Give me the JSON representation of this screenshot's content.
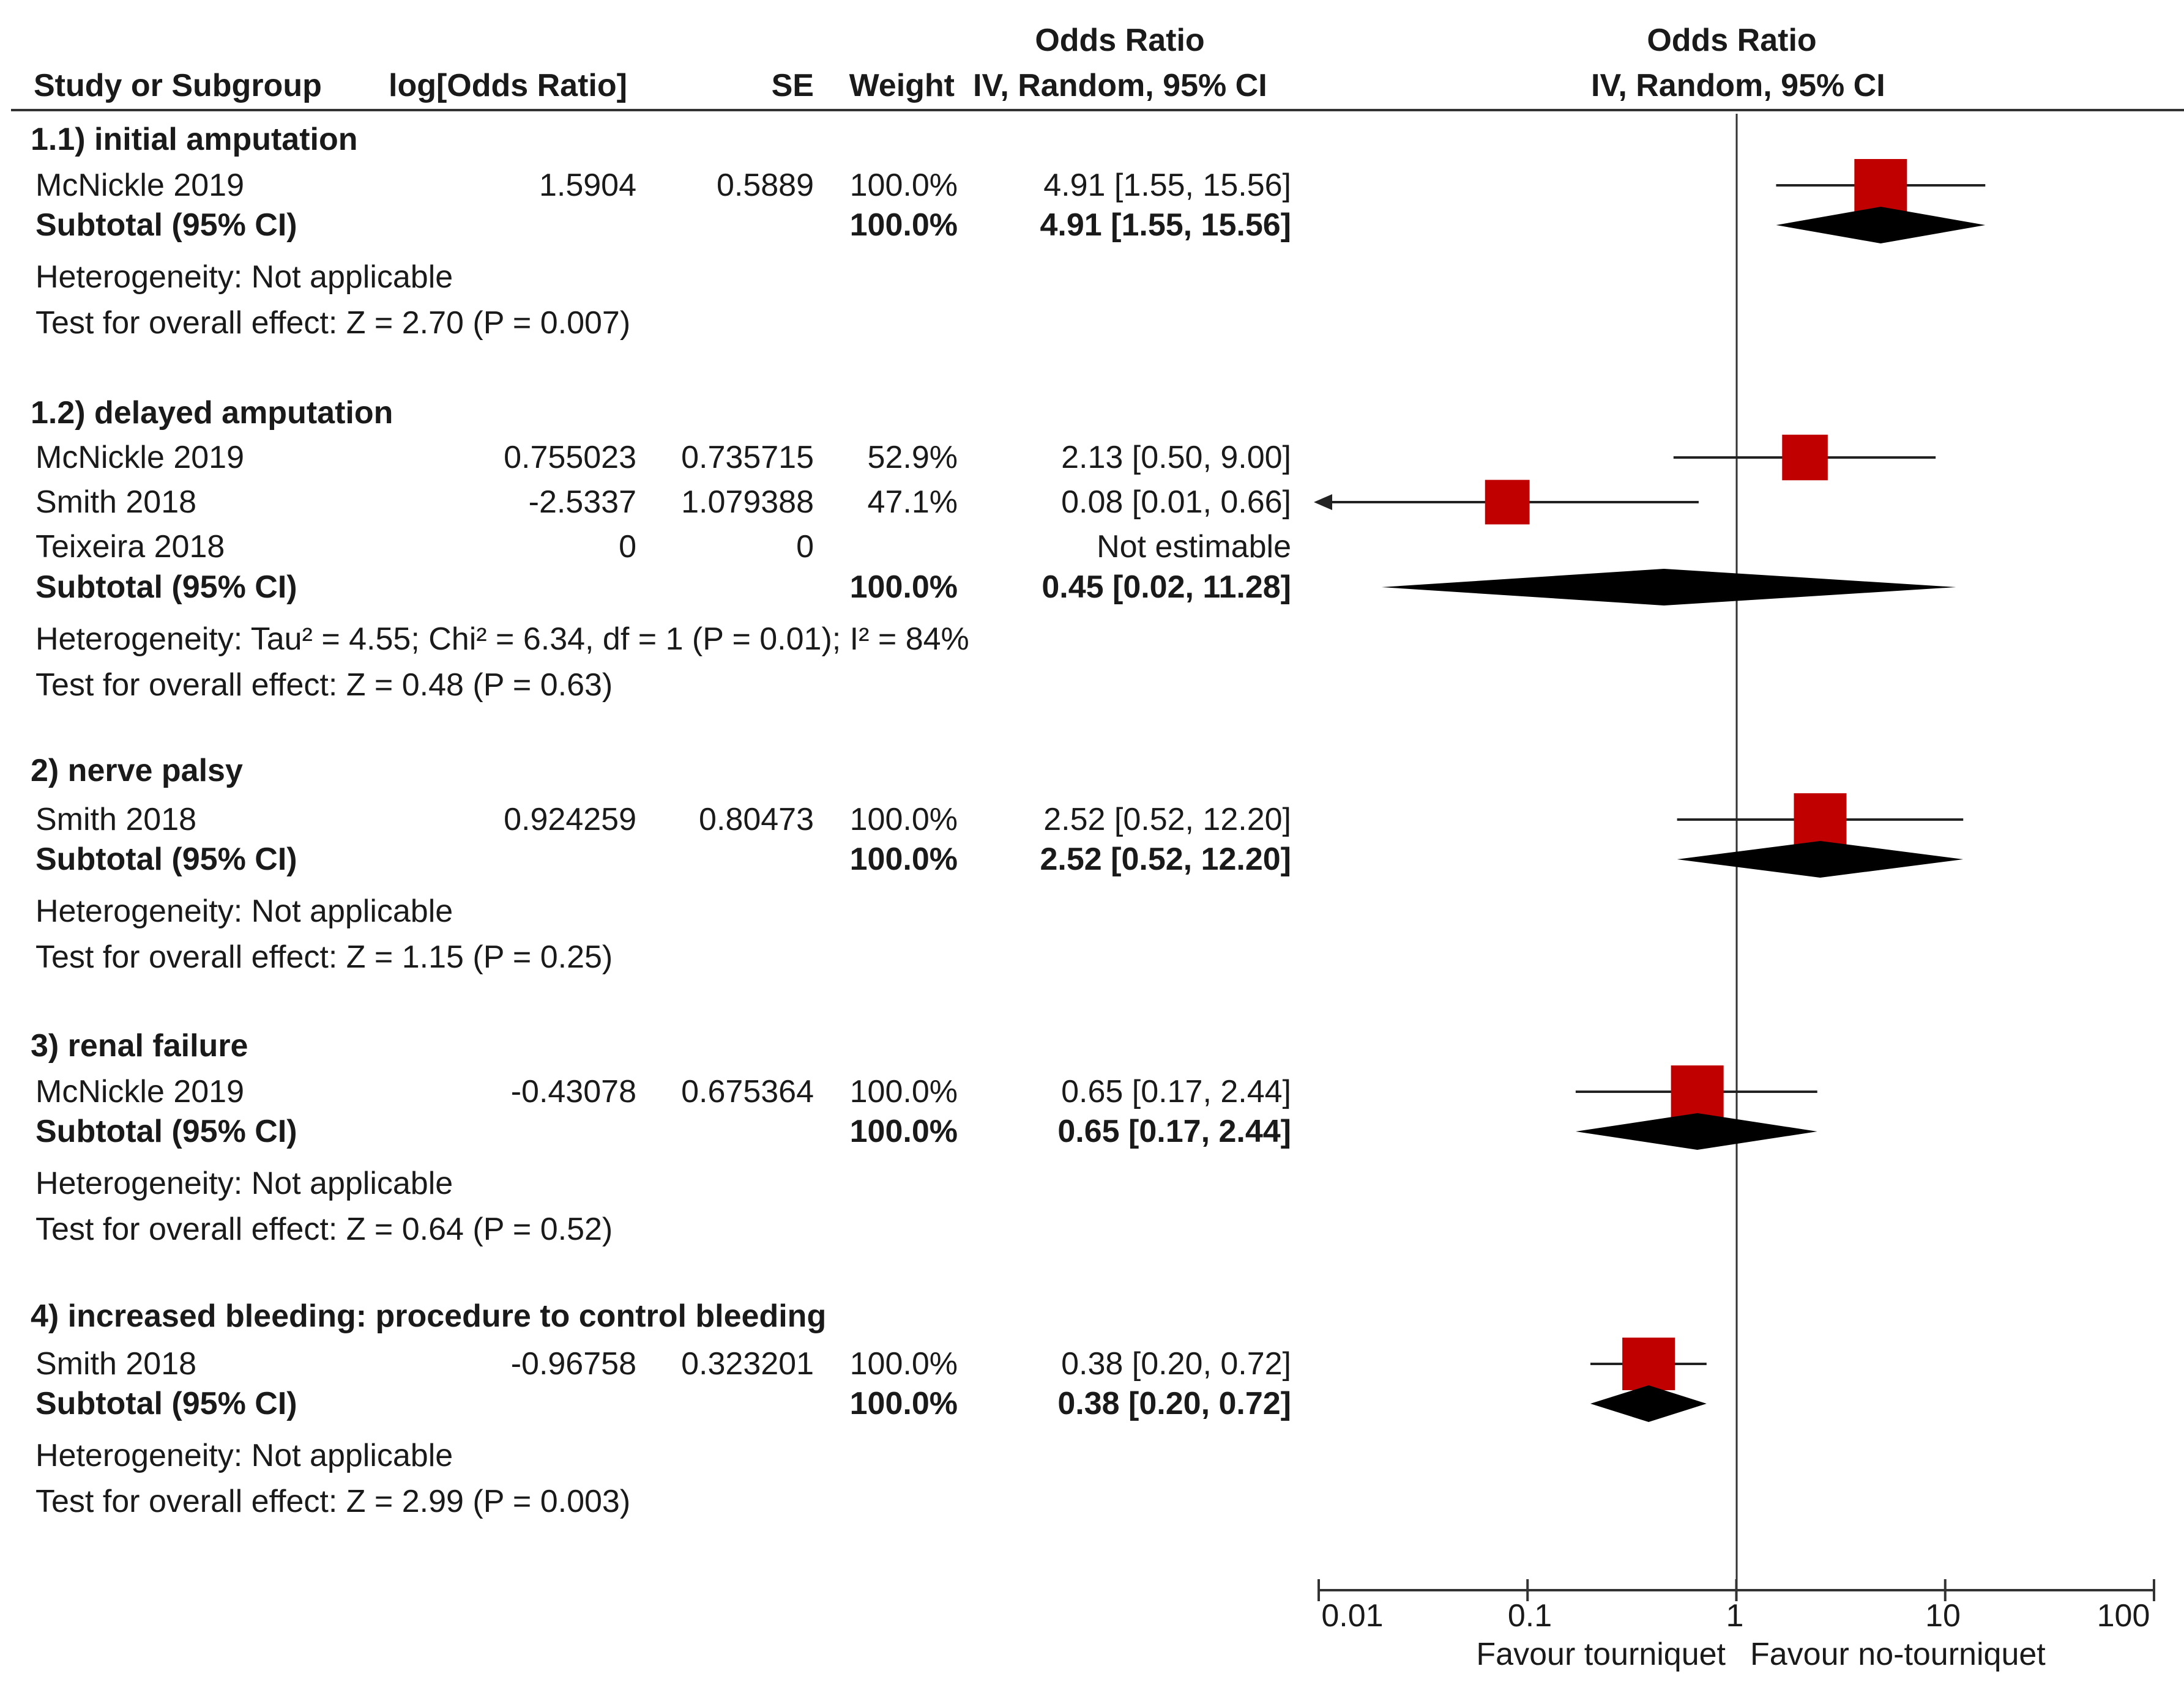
{
  "header": {
    "col_study": "Study or Subgroup",
    "col_log": "log[Odds Ratio]",
    "col_se": "SE",
    "col_weight": "Weight",
    "col_or_title": "Odds Ratio",
    "col_or_method": "IV, Random, 95% CI",
    "plot_title": "Odds Ratio",
    "plot_method": "IV, Random, 95% CI"
  },
  "groups": [
    {
      "title": "1.1) initial amputation",
      "studies": [
        {
          "name": "McNickle 2019",
          "log_or": "1.5904",
          "se": "0.5889",
          "weight": "100.0%",
          "ci_text": "4.91 [1.55, 15.56]"
        }
      ],
      "subtotal": {
        "label": "Subtotal (95% CI)",
        "weight": "100.0%",
        "ci_text": "4.91 [1.55, 15.56]"
      },
      "heterogeneity": "Heterogeneity: Not applicable",
      "overall": "Test for overall effect: Z = 2.70 (P = 0.007)"
    },
    {
      "title": "1.2) delayed amputation",
      "studies": [
        {
          "name": "McNickle 2019",
          "log_or": "0.755023",
          "se": "0.735715",
          "weight": "52.9%",
          "ci_text": "2.13 [0.50, 9.00]"
        },
        {
          "name": "Smith 2018",
          "log_or": "-2.5337",
          "se": "1.079388",
          "weight": "47.1%",
          "ci_text": "0.08 [0.01, 0.66]"
        },
        {
          "name": "Teixeira 2018",
          "log_or": "0",
          "se": "0",
          "weight": "",
          "ci_text": "Not estimable"
        }
      ],
      "subtotal": {
        "label": "Subtotal (95% CI)",
        "weight": "100.0%",
        "ci_text": "0.45 [0.02, 11.28]"
      },
      "heterogeneity": "Heterogeneity: Tau² = 4.55; Chi² = 6.34, df = 1 (P = 0.01); I² = 84%",
      "overall": "Test for overall effect: Z = 0.48 (P = 0.63)"
    },
    {
      "title": "2) nerve palsy",
      "studies": [
        {
          "name": "Smith 2018",
          "log_or": "0.924259",
          "se": "0.80473",
          "weight": "100.0%",
          "ci_text": "2.52 [0.52, 12.20]"
        }
      ],
      "subtotal": {
        "label": "Subtotal (95% CI)",
        "weight": "100.0%",
        "ci_text": "2.52 [0.52, 12.20]"
      },
      "heterogeneity": "Heterogeneity: Not applicable",
      "overall": "Test for overall effect: Z = 1.15 (P = 0.25)"
    },
    {
      "title": "3) renal failure",
      "studies": [
        {
          "name": "McNickle 2019",
          "log_or": "-0.43078",
          "se": "0.675364",
          "weight": "100.0%",
          "ci_text": "0.65 [0.17, 2.44]"
        }
      ],
      "subtotal": {
        "label": "Subtotal (95% CI)",
        "weight": "100.0%",
        "ci_text": "0.65 [0.17, 2.44]"
      },
      "heterogeneity": "Heterogeneity: Not applicable",
      "overall": "Test for overall effect: Z = 0.64 (P = 0.52)"
    },
    {
      "title": "4) increased bleeding: procedure to control bleeding",
      "studies": [
        {
          "name": "Smith 2018",
          "log_or": "-0.96758",
          "se": "0.323201",
          "weight": "100.0%",
          "ci_text": "0.38 [0.20, 0.72]"
        }
      ],
      "subtotal": {
        "label": "Subtotal (95% CI)",
        "weight": "100.0%",
        "ci_text": "0.38 [0.20, 0.72]"
      },
      "heterogeneity": "Heterogeneity: Not applicable",
      "overall": "Test for overall effect: Z = 2.99 (P = 0.003)"
    }
  ],
  "axis": {
    "ticks": [
      "0.01",
      "0.1",
      "1",
      "10",
      "100"
    ],
    "left_label": "Favour tourniquet",
    "right_label": "Favour no-tourniquet"
  },
  "chart_data": {
    "type": "forest",
    "scale": "log",
    "xlim": [
      0.01,
      100
    ],
    "reference_line": 1,
    "marker_color": "#c00000",
    "studies": [
      {
        "group": "1.1) initial amputation",
        "name": "McNickle 2019",
        "or": 4.91,
        "lo": 1.55,
        "hi": 15.56,
        "weight": 100.0
      },
      {
        "group": "1.2) delayed amputation",
        "name": "McNickle 2019",
        "or": 2.13,
        "lo": 0.5,
        "hi": 9.0,
        "weight": 52.9
      },
      {
        "group": "1.2) delayed amputation",
        "name": "Smith 2018",
        "or": 0.08,
        "lo": 0.01,
        "hi": 0.66,
        "weight": 47.1,
        "arrow_left": true
      },
      {
        "group": "2) nerve palsy",
        "name": "Smith 2018",
        "or": 2.52,
        "lo": 0.52,
        "hi": 12.2,
        "weight": 100.0
      },
      {
        "group": "3) renal failure",
        "name": "McNickle 2019",
        "or": 0.65,
        "lo": 0.17,
        "hi": 2.44,
        "weight": 100.0
      },
      {
        "group": "4) increased bleeding: procedure to control bleeding",
        "name": "Smith 2018",
        "or": 0.38,
        "lo": 0.2,
        "hi": 0.72,
        "weight": 100.0
      }
    ],
    "subtotals": [
      {
        "group": "1.1) initial amputation",
        "or": 4.91,
        "lo": 1.55,
        "hi": 15.56
      },
      {
        "group": "1.2) delayed amputation",
        "or": 0.45,
        "lo": 0.02,
        "hi": 11.28
      },
      {
        "group": "2) nerve palsy",
        "or": 2.52,
        "lo": 0.52,
        "hi": 12.2
      },
      {
        "group": "3) renal failure",
        "or": 0.65,
        "lo": 0.17,
        "hi": 2.44
      },
      {
        "group": "4) increased bleeding: procedure to control bleeding",
        "or": 0.38,
        "lo": 0.2,
        "hi": 0.72
      }
    ]
  }
}
